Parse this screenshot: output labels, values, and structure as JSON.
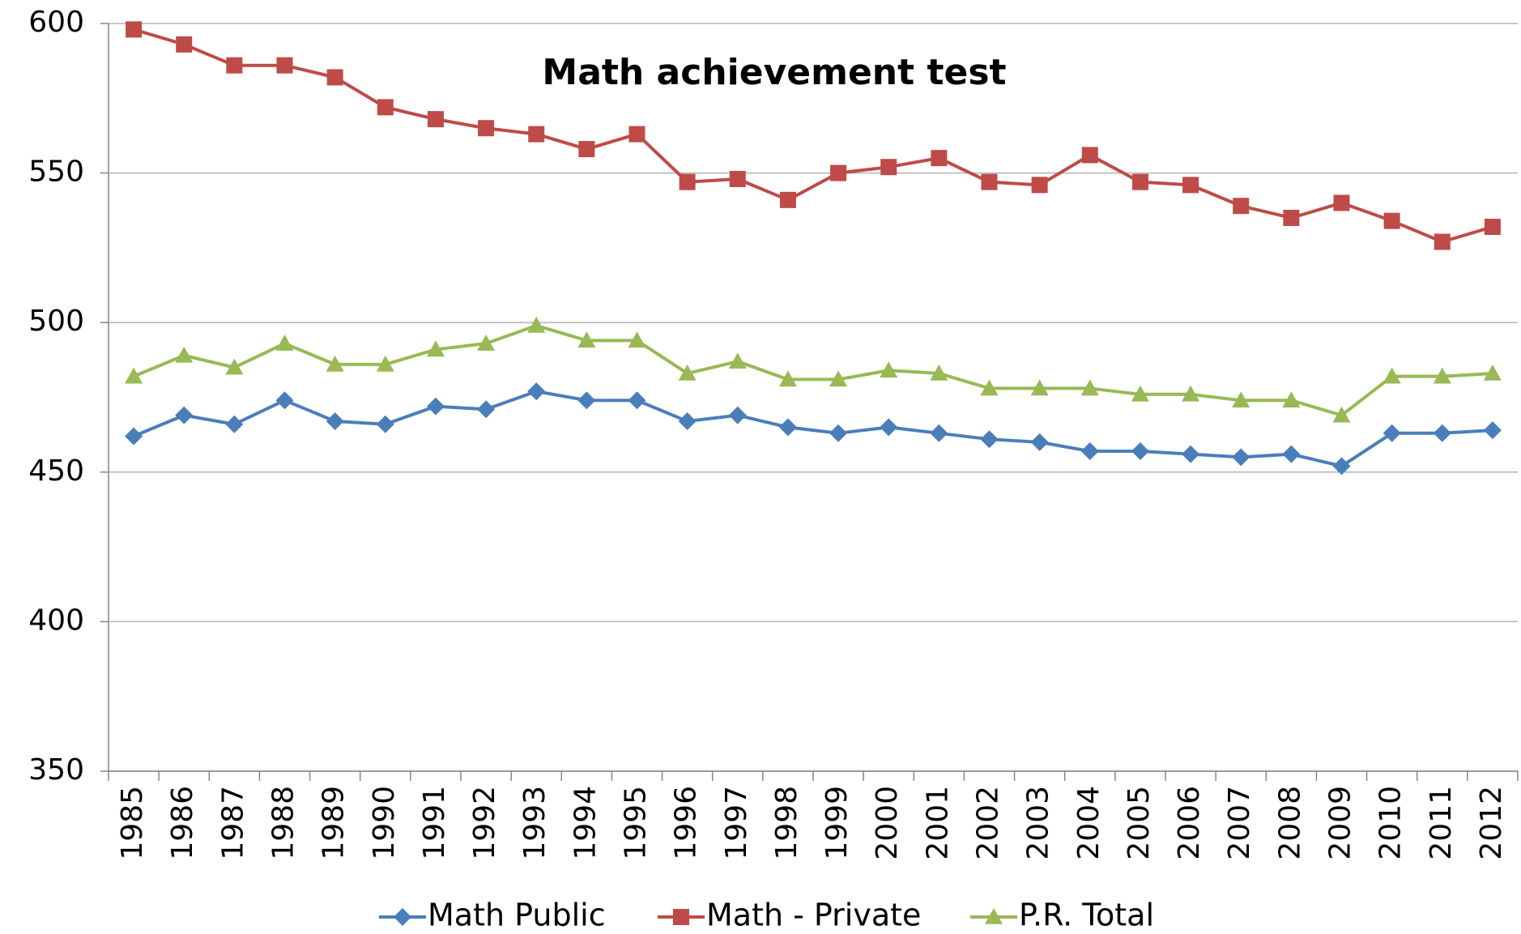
{
  "chart_data": {
    "type": "line",
    "title": "Math achievement test",
    "categories": [
      "1985",
      "1986",
      "1987",
      "1988",
      "1989",
      "1990",
      "1991",
      "1992",
      "1993",
      "1994",
      "1995",
      "1996",
      "1997",
      "1998",
      "1999",
      "2000",
      "2001",
      "2002",
      "2003",
      "2004",
      "2005",
      "2006",
      "2007",
      "2008",
      "2009",
      "2010",
      "2011",
      "2012"
    ],
    "series": [
      {
        "name": "Math Public",
        "color": "#4a7ebb",
        "marker": "diamond",
        "values": [
          462,
          469,
          466,
          474,
          467,
          466,
          472,
          471,
          477,
          474,
          474,
          467,
          469,
          465,
          463,
          465,
          463,
          461,
          460,
          457,
          457,
          456,
          455,
          456,
          452,
          463,
          463,
          464
        ]
      },
      {
        "name": "Math - Private",
        "color": "#be4b48",
        "marker": "square",
        "values": [
          598,
          593,
          586,
          586,
          582,
          572,
          568,
          565,
          563,
          558,
          563,
          547,
          548,
          541,
          550,
          552,
          555,
          547,
          546,
          556,
          547,
          546,
          539,
          535,
          540,
          534,
          527,
          532
        ]
      },
      {
        "name": "P.R. Total",
        "color": "#98b954",
        "marker": "triangle",
        "values": [
          482,
          489,
          485,
          493,
          486,
          486,
          491,
          493,
          499,
          494,
          494,
          483,
          487,
          481,
          481,
          484,
          483,
          478,
          478,
          478,
          476,
          476,
          474,
          474,
          469,
          482,
          482,
          483
        ]
      }
    ],
    "ylim": [
      350,
      600
    ],
    "yticks": [
      350,
      400,
      450,
      500,
      550,
      600
    ],
    "grid": true,
    "legend": "bottom"
  }
}
